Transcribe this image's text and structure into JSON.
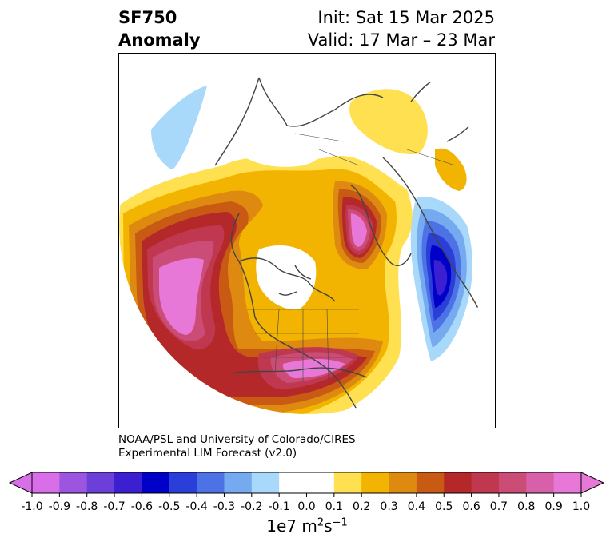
{
  "title": {
    "left_line1": "SF750",
    "left_line2": "Anomaly",
    "right_line1": "Init: Sat 15 Mar 2025",
    "right_line2": "Valid: 17 Mar – 23 Mar"
  },
  "credit": {
    "line1": "NOAA/PSL and University of Colorado/CIRES",
    "line2": "Experimental LIM Forecast (v2.0)"
  },
  "colorbar": {
    "ticks": [
      "-1.0",
      "-0.9",
      "-0.8",
      "-0.7",
      "-0.6",
      "-0.5",
      "-0.4",
      "-0.3",
      "-0.2",
      "-0.1",
      "0.0",
      "0.1",
      "0.2",
      "0.3",
      "0.4",
      "0.5",
      "0.6",
      "0.7",
      "0.8",
      "0.9",
      "1.0"
    ],
    "colors": [
      "#d96fe8",
      "#9b55e0",
      "#6b3fd8",
      "#3b1fd0",
      "#0000c8",
      "#2a3fd8",
      "#4d72e6",
      "#75aaf0",
      "#a8d8fa",
      "#ffffff",
      "#ffffff",
      "#ffe050",
      "#f2b400",
      "#de8a10",
      "#c85a14",
      "#b4282a",
      "#c03850",
      "#cc4c78",
      "#d860a8",
      "#e878d8"
    ],
    "units_base": "1e7 m",
    "units_exp1": "2",
    "units_s": "s",
    "units_exp2": "−1"
  }
}
